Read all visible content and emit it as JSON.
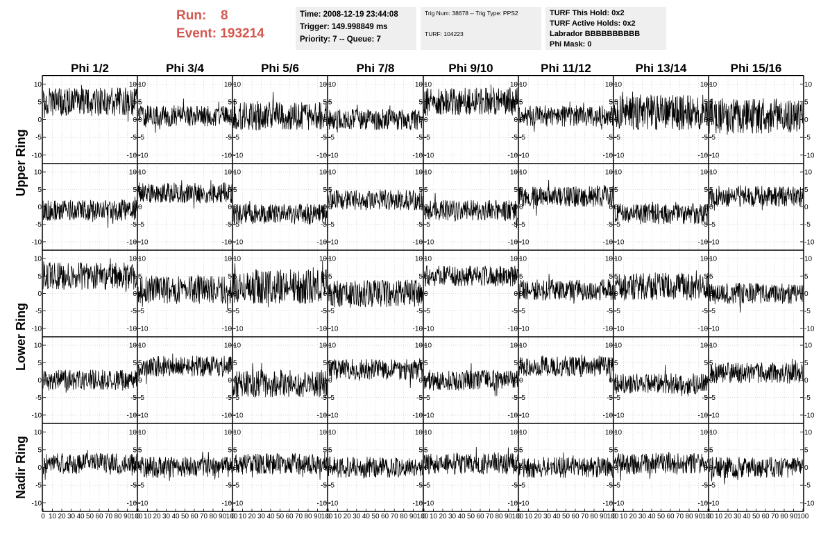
{
  "header": {
    "run_label": "Run:",
    "run_value": "8",
    "event_label": "Event:",
    "event_value": "193214"
  },
  "info_box_1": {
    "time": "Time: 2008-12-19 23:44:08",
    "trigger": "Trigger: 149.998849 ms",
    "priority": "Priority: 7 -- Queue: 7"
  },
  "info_box_2": {
    "trig": "Trig Num: 38678 -- Trig Type: PPS2",
    "turf": "TURF: 104223"
  },
  "info_box_3": {
    "hold": "TURF This Hold: 0x2",
    "active": "TURF Active Holds: 0x2",
    "labrador": "Labrador BBBBBBBBBB",
    "phimask": "Phi Mask: 0"
  },
  "chart_data": {
    "type": "line",
    "columns": [
      "Phi 1/2",
      "Phi 3/4",
      "Phi 5/6",
      "Phi 7/8",
      "Phi 9/10",
      "Phi 11/12",
      "Phi 13/14",
      "Phi 15/16"
    ],
    "row_groups": [
      {
        "label": "Upper Ring",
        "rows": [
          0,
          1
        ]
      },
      {
        "label": "Lower Ring",
        "rows": [
          2,
          3
        ]
      },
      {
        "label": "Nadir Ring",
        "rows": [
          4
        ]
      }
    ],
    "xlim": [
      0,
      100
    ],
    "ylim": [
      -12,
      12
    ],
    "x_ticks": [
      "0",
      "10",
      "20",
      "30",
      "40",
      "50",
      "60",
      "70",
      "80",
      "90",
      "100"
    ],
    "y_ticks": [
      "10",
      "5",
      "0",
      "-5",
      "-10"
    ],
    "y_tick_values": [
      10,
      5,
      0,
      -5,
      -10
    ],
    "grid": true,
    "baselines": [
      [
        5,
        1,
        1,
        0,
        5,
        1,
        2,
        1
      ],
      [
        -1,
        4,
        -2,
        2,
        -1,
        3,
        -2,
        3
      ],
      [
        5,
        1,
        2,
        0,
        5,
        1,
        2,
        0
      ],
      [
        0,
        4,
        -1,
        3,
        0,
        4,
        -1,
        2
      ],
      [
        1,
        0,
        1,
        0,
        1,
        0,
        1,
        0
      ]
    ],
    "amplitudes": [
      [
        4,
        3,
        4,
        3,
        4,
        3,
        5,
        5
      ],
      [
        3,
        3,
        3,
        3,
        3,
        3,
        3,
        3
      ],
      [
        4,
        4,
        5,
        4,
        3,
        3,
        4,
        3
      ],
      [
        3,
        3,
        4,
        3,
        3,
        3,
        3,
        3
      ],
      [
        3,
        3,
        3,
        3,
        3,
        3,
        3,
        3
      ]
    ]
  }
}
